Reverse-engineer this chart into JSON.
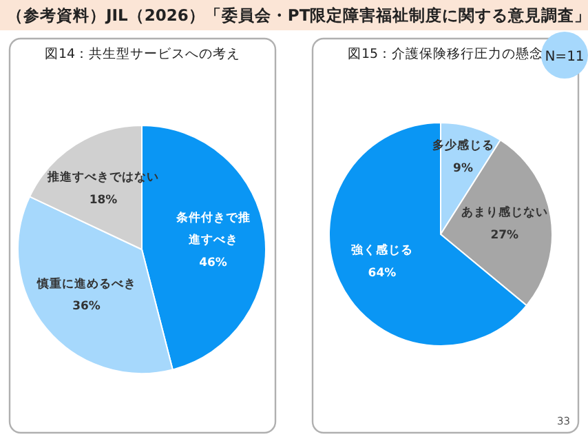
{
  "chart_data": [
    {
      "type": "pie",
      "title": "図14：共生型サービスへの考え",
      "categories": [
        "条件付きで推進すべき",
        "慎重に進めるべき",
        "推進すべきではない"
      ],
      "values": [
        46,
        36,
        18
      ],
      "value_labels": [
        "46%",
        "36%",
        "18%"
      ],
      "colors": [
        "#0a96f4",
        "#a6d8fc",
        "#d0d0d0"
      ],
      "annotations": [
        "（参考資料）JIL（2026）「委員会・PT限定障害福祉制度に関する意見調査」",
        "33"
      ]
    },
    {
      "type": "pie",
      "title": "図15：介護保険移行圧力の懸念",
      "categories": [
        "多少感じる",
        "あまり感じない",
        "強く感じる"
      ],
      "values": [
        9,
        27,
        64
      ],
      "value_labels": [
        "9%",
        "27%",
        "64%"
      ],
      "colors": [
        "#a6d8fc",
        "#a6a6a6",
        "#0a96f4"
      ],
      "annotations": [
        "N=11"
      ]
    }
  ]
}
